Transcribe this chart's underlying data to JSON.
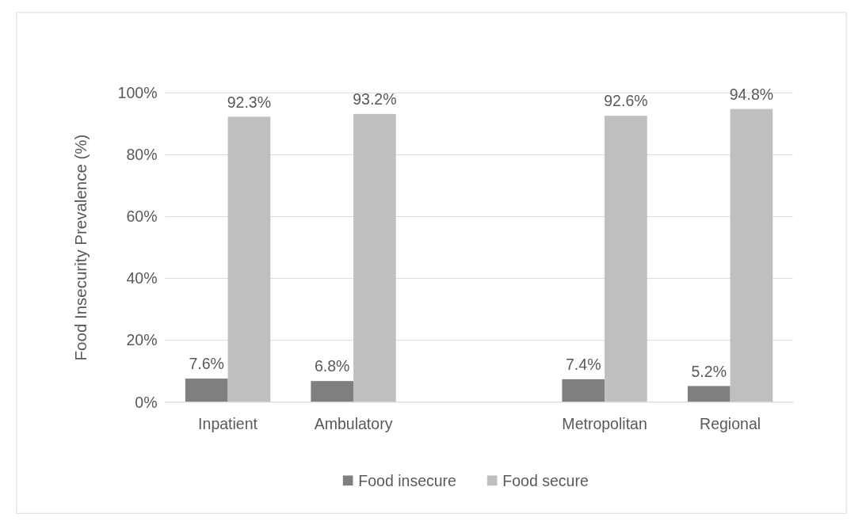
{
  "chart_data": {
    "type": "bar",
    "ylabel": "Food Insecurity Prevalence (%)",
    "categories": [
      "Inpatient",
      "Ambulatory",
      null,
      "Metropolitan",
      "Regional"
    ],
    "series": [
      {
        "name": "Food insecure",
        "color": "#7f7f7f",
        "values": [
          7.6,
          6.8,
          null,
          7.4,
          5.2
        ],
        "value_labels": [
          "7.6%",
          "6.8%",
          null,
          "7.4%",
          "5.2%"
        ]
      },
      {
        "name": "Food secure",
        "color": "#bfbfbf",
        "values": [
          92.3,
          93.2,
          null,
          92.6,
          94.8
        ],
        "value_labels": [
          "92.3%",
          "93.2%",
          null,
          "92.6%",
          "94.8%"
        ]
      }
    ],
    "ylim": [
      0,
      100
    ],
    "yticks": [
      {
        "value": 0,
        "label": "0%"
      },
      {
        "value": 20,
        "label": "20%"
      },
      {
        "value": 40,
        "label": "40%"
      },
      {
        "value": 60,
        "label": "60%"
      },
      {
        "value": 80,
        "label": "80%"
      },
      {
        "value": 100,
        "label": "100%"
      }
    ],
    "grid": "y",
    "legend": "bottom"
  }
}
